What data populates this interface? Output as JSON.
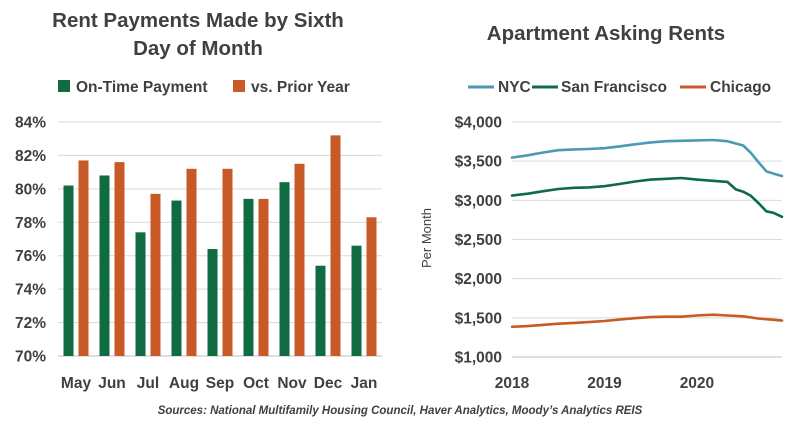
{
  "chart_data": [
    {
      "type": "bar",
      "title_lines": [
        "Rent Payments Made by Sixth",
        "Day of Month"
      ],
      "categories": [
        "May",
        "Jun",
        "Jul",
        "Aug",
        "Sep",
        "Oct",
        "Nov",
        "Dec",
        "Jan"
      ],
      "series": [
        {
          "name": "On-Time Payment",
          "color": "#0e6b42",
          "values": [
            80.2,
            80.8,
            77.4,
            79.3,
            76.4,
            79.4,
            80.4,
            75.4,
            76.6
          ]
        },
        {
          "name": "vs. Prior Year",
          "color": "#c85a27",
          "values": [
            81.7,
            81.6,
            79.7,
            81.2,
            81.2,
            79.4,
            81.5,
            83.2,
            78.3
          ]
        }
      ],
      "yticks": [
        "70%",
        "72%",
        "74%",
        "76%",
        "78%",
        "80%",
        "82%",
        "84%"
      ],
      "ylim": [
        70,
        84
      ],
      "xlabel": "",
      "ylabel": "",
      "grid": true,
      "legend_position": "top"
    },
    {
      "type": "line",
      "title": "Apartment Asking Rents",
      "xticks": [
        "2018",
        "2019",
        "2020"
      ],
      "xlim": [
        2018,
        2020.92
      ],
      "yticks": [
        "$1,000",
        "$1,500",
        "$2,000",
        "$2,500",
        "$3,000",
        "$3,500",
        "$4,000"
      ],
      "ylim": [
        1000,
        4000
      ],
      "ylabel": "Per Month",
      "xlabel": "",
      "grid": true,
      "legend_position": "top",
      "series": [
        {
          "name": "NYC",
          "color": "#4a9ab5",
          "points": [
            [
              2018.0,
              3545
            ],
            [
              2018.17,
              3575
            ],
            [
              2018.33,
              3610
            ],
            [
              2018.5,
              3640
            ],
            [
              2018.67,
              3650
            ],
            [
              2018.83,
              3655
            ],
            [
              2019.0,
              3665
            ],
            [
              2019.17,
              3690
            ],
            [
              2019.33,
              3715
            ],
            [
              2019.5,
              3740
            ],
            [
              2019.67,
              3755
            ],
            [
              2019.83,
              3760
            ],
            [
              2020.0,
              3765
            ],
            [
              2020.17,
              3770
            ],
            [
              2020.33,
              3755
            ],
            [
              2020.5,
              3700
            ],
            [
              2020.58,
              3610
            ],
            [
              2020.67,
              3480
            ],
            [
              2020.75,
              3370
            ],
            [
              2020.83,
              3340
            ],
            [
              2020.92,
              3310
            ]
          ]
        },
        {
          "name": "San Francisco",
          "color": "#0e6b42",
          "points": [
            [
              2018.0,
              3060
            ],
            [
              2018.17,
              3085
            ],
            [
              2018.33,
              3115
            ],
            [
              2018.5,
              3145
            ],
            [
              2018.67,
              3160
            ],
            [
              2018.83,
              3165
            ],
            [
              2019.0,
              3180
            ],
            [
              2019.17,
              3210
            ],
            [
              2019.33,
              3240
            ],
            [
              2019.5,
              3265
            ],
            [
              2019.67,
              3275
            ],
            [
              2019.83,
              3285
            ],
            [
              2020.0,
              3265
            ],
            [
              2020.17,
              3250
            ],
            [
              2020.33,
              3235
            ],
            [
              2020.42,
              3140
            ],
            [
              2020.5,
              3110
            ],
            [
              2020.58,
              3060
            ],
            [
              2020.67,
              2960
            ],
            [
              2020.75,
              2860
            ],
            [
              2020.83,
              2840
            ],
            [
              2020.92,
              2790
            ]
          ]
        },
        {
          "name": "Chicago",
          "color": "#c85a27",
          "points": [
            [
              2018.0,
              1385
            ],
            [
              2018.17,
              1395
            ],
            [
              2018.33,
              1410
            ],
            [
              2018.5,
              1425
            ],
            [
              2018.67,
              1435
            ],
            [
              2018.83,
              1445
            ],
            [
              2019.0,
              1460
            ],
            [
              2019.17,
              1480
            ],
            [
              2019.33,
              1495
            ],
            [
              2019.5,
              1510
            ],
            [
              2019.67,
              1515
            ],
            [
              2019.83,
              1515
            ],
            [
              2020.0,
              1530
            ],
            [
              2020.17,
              1540
            ],
            [
              2020.33,
              1530
            ],
            [
              2020.5,
              1520
            ],
            [
              2020.67,
              1490
            ],
            [
              2020.83,
              1475
            ],
            [
              2020.92,
              1465
            ]
          ]
        }
      ]
    }
  ],
  "source_text": "Sources: National Multifamily Housing Council, Haver Analytics, Moody’s Analytics REIS"
}
